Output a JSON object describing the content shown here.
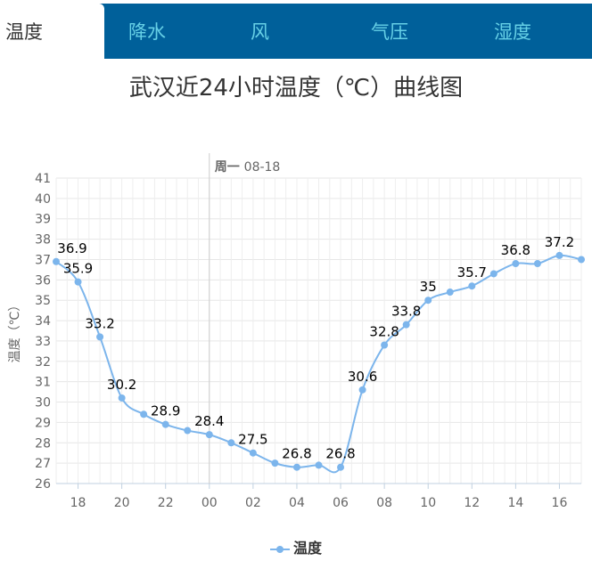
{
  "tabs": [
    {
      "label": "温度",
      "active": true
    },
    {
      "label": "降水",
      "active": false
    },
    {
      "label": "风",
      "active": false
    },
    {
      "label": "气压",
      "active": false
    },
    {
      "label": "湿度",
      "active": false
    }
  ],
  "colors": {
    "tab_bar": "#00609a",
    "tab_text": "#66d0e6",
    "series": "#7cb5ec"
  },
  "chart_data": {
    "type": "line",
    "title": "武汉近24小时温度（℃）曲线图",
    "ylabel": "温度（℃）",
    "xlabel": "",
    "ylim": [
      26,
      41
    ],
    "yticks": [
      "26",
      "27",
      "28",
      "29",
      "30",
      "31",
      "32",
      "33",
      "34",
      "35",
      "36",
      "37",
      "38",
      "39",
      "40",
      "41"
    ],
    "xticks": [
      "18",
      "20",
      "22",
      "00",
      "02",
      "04",
      "06",
      "08",
      "10",
      "12",
      "14",
      "16"
    ],
    "grid": true,
    "day_marker": {
      "bold": "周一",
      "text": "08-18"
    },
    "legend": "bottom-center",
    "series": [
      {
        "name": "温度",
        "x": [
          "17",
          "18",
          "19",
          "20",
          "21",
          "22",
          "23",
          "00",
          "01",
          "02",
          "03",
          "04",
          "05",
          "06",
          "07",
          "08",
          "09",
          "10",
          "11",
          "12",
          "13",
          "14",
          "15",
          "16",
          "17"
        ],
        "values": [
          36.9,
          35.9,
          33.2,
          30.2,
          29.4,
          28.9,
          28.6,
          28.4,
          28.0,
          27.5,
          27.0,
          26.8,
          26.9,
          26.8,
          30.6,
          32.8,
          33.8,
          35.0,
          35.4,
          35.7,
          36.3,
          36.8,
          36.8,
          37.2,
          37.0
        ],
        "labels": [
          {
            "i": 0,
            "text": "36.9"
          },
          {
            "i": 1,
            "text": "35.9"
          },
          {
            "i": 2,
            "text": "33.2"
          },
          {
            "i": 3,
            "text": "30.2"
          },
          {
            "i": 5,
            "text": "28.9"
          },
          {
            "i": 7,
            "text": "28.4"
          },
          {
            "i": 9,
            "text": "27.5"
          },
          {
            "i": 11,
            "text": "26.8"
          },
          {
            "i": 13,
            "text": "26.8"
          },
          {
            "i": 14,
            "text": "30.6"
          },
          {
            "i": 15,
            "text": "32.8"
          },
          {
            "i": 16,
            "text": "33.8"
          },
          {
            "i": 17,
            "text": "35"
          },
          {
            "i": 19,
            "text": "35.7"
          },
          {
            "i": 21,
            "text": "36.8"
          },
          {
            "i": 23,
            "text": "37.2"
          }
        ]
      }
    ]
  }
}
